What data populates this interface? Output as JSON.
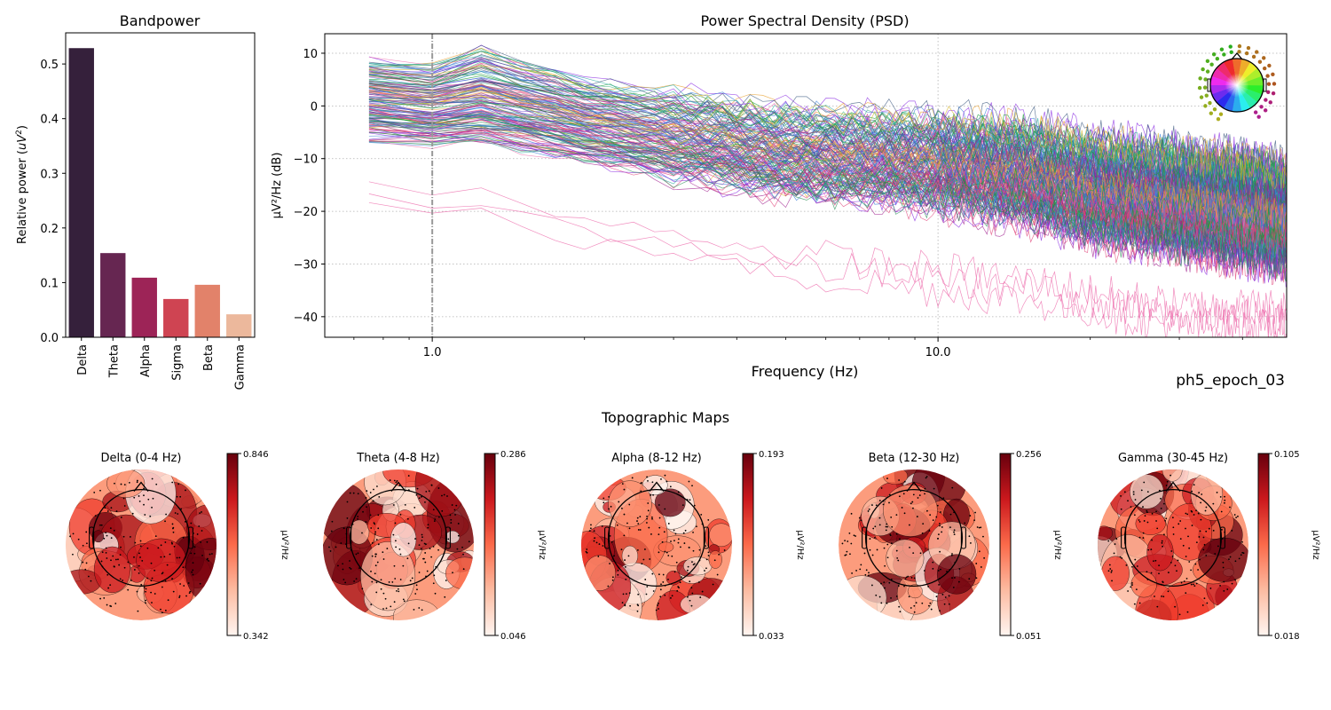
{
  "figure_label": "ph5_epoch_03",
  "chart_data": [
    {
      "id": "bandpower",
      "type": "bar",
      "title": "Bandpower",
      "xlabel": "",
      "ylabel": "Relative power (uV²)",
      "ylabel_parts": {
        "prefix": "Relative power (",
        "italic": "uV",
        "sup": "2",
        "suffix": ")"
      },
      "categories": [
        "Delta",
        "Theta",
        "Alpha",
        "Sigma",
        "Beta",
        "Gamma"
      ],
      "values": [
        0.529,
        0.154,
        0.109,
        0.07,
        0.096,
        0.042
      ],
      "colors": [
        "#35203b",
        "#662651",
        "#9d2457",
        "#cf4452",
        "#e2826a",
        "#ecb89c"
      ],
      "ylim": [
        0,
        0.557
      ],
      "yticks": [
        0.0,
        0.1,
        0.2,
        0.3,
        0.4,
        0.5
      ],
      "ytick_labels": [
        "0.0",
        "0.1",
        "0.2",
        "0.3",
        "0.4",
        "0.5"
      ],
      "grid": false
    },
    {
      "id": "psd",
      "type": "line",
      "title": "Power Spectral Density (PSD)",
      "xlabel": "Frequency (Hz)",
      "ylabel": "µV²/Hz (dB)",
      "xscale": "log",
      "xlim": [
        0.613,
        48.9
      ],
      "ylim": [
        -43.9,
        13.7
      ],
      "xticks": [
        1.0,
        10.0
      ],
      "xtick_labels": [
        "1.0",
        "10.0"
      ],
      "yticks": [
        10,
        0,
        -10,
        -20,
        -30,
        -40
      ],
      "ytick_labels": [
        "10",
        "0",
        "−10",
        "−20",
        "−30",
        "−40"
      ],
      "grid": true,
      "grid_style": "dotted",
      "vline": {
        "x": 1.0,
        "style": "dash-dot",
        "color": "#999999"
      },
      "n_channels_approx": 250,
      "series_summary": {
        "description": "Many overlapping per-channel PSD traces colored by sensor position; values estimated from the plot envelope",
        "frequency_points": [
          0.613,
          1.0,
          1.2,
          2.0,
          3.0,
          5.0,
          10.0,
          15.0,
          20.0,
          30.0,
          48.9
        ],
        "mean_db": [
          2,
          0,
          2,
          -3,
          -6,
          -9,
          -11,
          -13,
          -16,
          -18,
          -21
        ],
        "upper_db": [
          10,
          9,
          11,
          4,
          2,
          -1,
          -3,
          -4,
          -6,
          -8,
          -13
        ],
        "lower_db": [
          -10,
          -11,
          -13,
          -16,
          -19,
          -22,
          -25,
          -27,
          -30,
          -32,
          -36
        ],
        "outlier_low_db": [
          -16,
          -18,
          -18,
          -24,
          -26,
          -30,
          -33,
          -35,
          -37,
          -40,
          -40
        ]
      },
      "palette": [
        "#1b9e3a",
        "#2f8f5a",
        "#3fb37f",
        "#2aa9a0",
        "#3a7dd8",
        "#4657c9",
        "#6a3ad0",
        "#8a2be2",
        "#a0228f",
        "#c2186b",
        "#e0457b",
        "#ee6fae",
        "#e8a030",
        "#d4b42a",
        "#7a7a7a",
        "#3d5a80"
      ],
      "sensor_inset": {
        "description": "sensor-location head inset with rainbow color mapping",
        "location": "top-right"
      }
    },
    {
      "id": "topomaps",
      "type": "heatmap",
      "title": "Topographic Maps",
      "colormap": "Reds",
      "colorbar_label": "µV²/Hz",
      "maps": [
        {
          "title": "Delta (0-4 Hz)",
          "vmin": 0.342,
          "vmax": 0.846,
          "vmin_label": "0.342",
          "vmax_label": "0.846"
        },
        {
          "title": "Theta (4-8 Hz)",
          "vmin": 0.046,
          "vmax": 0.286,
          "vmin_label": "0.046",
          "vmax_label": "0.286"
        },
        {
          "title": "Alpha (8-12 Hz)",
          "vmin": 0.033,
          "vmax": 0.193,
          "vmin_label": "0.033",
          "vmax_label": "0.193"
        },
        {
          "title": "Beta (12-30 Hz)",
          "vmin": 0.051,
          "vmax": 0.256,
          "vmin_label": "0.051",
          "vmax_label": "0.256"
        },
        {
          "title": "Gamma (30-45 Hz)",
          "vmin": 0.018,
          "vmax": 0.105,
          "vmin_label": "0.018",
          "vmax_label": "0.105"
        }
      ]
    }
  ]
}
